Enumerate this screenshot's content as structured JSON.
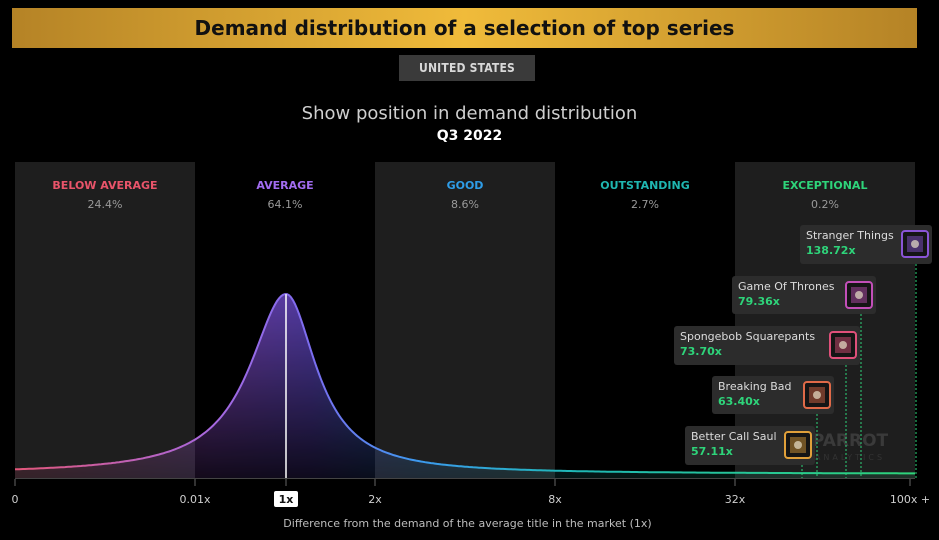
{
  "header": {
    "title": "Demand distribution of a selection of top series",
    "region": "UNITED STATES",
    "subtitle": "Show position in demand distribution",
    "period": "Q3 2022"
  },
  "chart_data": {
    "type": "area",
    "title": "Show position in demand distribution",
    "xlabel": "Difference from the demand of the average title in the market (1x)",
    "x_scale": "log",
    "x_ticks": [
      "0",
      "0.01x",
      "1x",
      "2x",
      "8x",
      "32x",
      "100x +"
    ],
    "highlight_tick": "1x",
    "bands": [
      {
        "name": "BELOW AVERAGE",
        "share": "24.4%",
        "color": "#e9546a",
        "shaded": true
      },
      {
        "name": "AVERAGE",
        "share": "64.1%",
        "color": "#a16cf0",
        "shaded": false
      },
      {
        "name": "GOOD",
        "share": "8.6%",
        "color": "#2e9de8",
        "shaded": true
      },
      {
        "name": "OUTSTANDING",
        "share": "2.7%",
        "color": "#1fb6b0",
        "shaded": false
      },
      {
        "name": "EXCEPTIONAL",
        "share": "0.2%",
        "color": "#2ed47a",
        "shaded": true
      }
    ],
    "curve_peak_at": "1x",
    "shows": [
      {
        "name": "Stranger Things",
        "value": "138.72x",
        "icon": "stranger-things-thumbnail",
        "frame_color": "#8a55d6"
      },
      {
        "name": "Game Of Thrones",
        "value": "79.36x",
        "icon": "game-of-thrones-thumbnail",
        "frame_color": "#c24fb8"
      },
      {
        "name": "Spongebob Squarepants",
        "value": "73.70x",
        "icon": "spongebob-thumbnail",
        "frame_color": "#e0507a"
      },
      {
        "name": "Breaking Bad",
        "value": "63.40x",
        "icon": "breaking-bad-thumbnail",
        "frame_color": "#e06a48"
      },
      {
        "name": "Better Call Saul",
        "value": "57.11x",
        "icon": "better-call-saul-thumbnail",
        "frame_color": "#e0a03a"
      }
    ],
    "value_color": "#2ed47a",
    "grid": false
  },
  "watermark": "PARROT ANALYTICS"
}
